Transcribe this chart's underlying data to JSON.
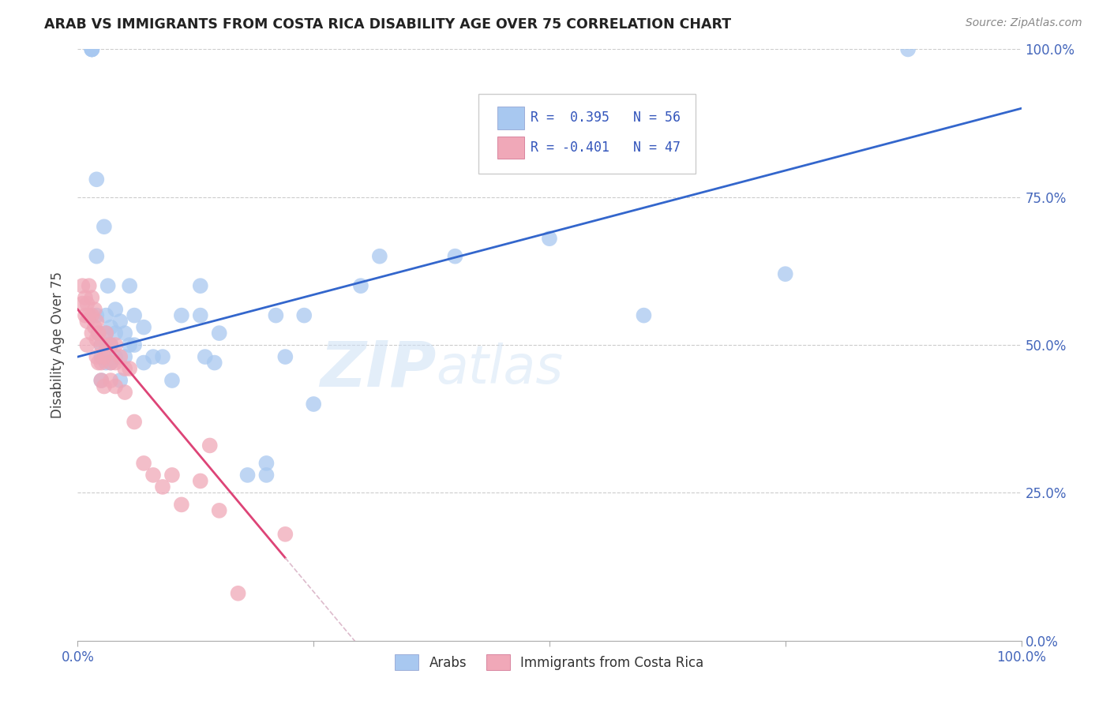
{
  "title": "ARAB VS IMMIGRANTS FROM COSTA RICA DISABILITY AGE OVER 75 CORRELATION CHART",
  "source": "Source: ZipAtlas.com",
  "ylabel": "Disability Age Over 75",
  "ytick_labels": [
    "100.0%",
    "75.0%",
    "50.0%",
    "25.0%",
    "0.0%"
  ],
  "ytick_values": [
    100,
    75,
    50,
    25,
    0
  ],
  "legend_blue_label": "Arabs",
  "legend_pink_label": "Immigrants from Costa Rica",
  "R_blue": 0.395,
  "N_blue": 56,
  "R_pink": -0.401,
  "N_pink": 47,
  "blue_color": "#A8C8F0",
  "pink_color": "#F0A8B8",
  "blue_line_color": "#3366CC",
  "pink_line_color": "#DD4477",
  "watermark_zip": "ZIP",
  "watermark_atlas": "atlas",
  "background_color": "#FFFFFF",
  "grid_color": "#CCCCCC",
  "tick_color": "#4466BB",
  "arab_x": [
    1.5,
    1.5,
    1.5,
    1.5,
    2.0,
    2.0,
    2.0,
    2.2,
    2.5,
    2.5,
    2.5,
    2.8,
    3.0,
    3.0,
    3.0,
    3.0,
    3.2,
    3.5,
    3.5,
    3.5,
    4.0,
    4.0,
    4.0,
    4.5,
    4.5,
    5.0,
    5.0,
    5.5,
    5.5,
    6.0,
    6.0,
    7.0,
    7.0,
    8.0,
    9.0,
    10.0,
    11.0,
    13.0,
    13.0,
    13.5,
    14.5,
    15.0,
    18.0,
    20.0,
    20.0,
    21.0,
    22.0,
    24.0,
    25.0,
    30.0,
    32.0,
    40.0,
    50.0,
    60.0,
    75.0,
    88.0
  ],
  "arab_y": [
    100,
    100,
    100,
    100,
    78,
    65,
    55,
    52,
    50,
    48,
    44,
    70,
    55,
    52,
    50,
    47,
    60,
    53,
    50,
    47,
    56,
    52,
    48,
    54,
    44,
    52,
    48,
    60,
    50,
    55,
    50,
    53,
    47,
    48,
    48,
    44,
    55,
    60,
    55,
    48,
    47,
    52,
    28,
    30,
    28,
    55,
    48,
    55,
    40,
    60,
    65,
    65,
    68,
    55,
    62,
    100
  ],
  "cr_x": [
    0.5,
    0.5,
    0.8,
    0.8,
    1.0,
    1.0,
    1.0,
    1.2,
    1.2,
    1.5,
    1.5,
    1.5,
    1.8,
    1.8,
    2.0,
    2.0,
    2.0,
    2.2,
    2.2,
    2.5,
    2.5,
    2.5,
    2.8,
    2.8,
    3.0,
    3.0,
    3.5,
    3.5,
    3.5,
    4.0,
    4.0,
    4.0,
    4.5,
    5.0,
    5.0,
    5.5,
    6.0,
    7.0,
    8.0,
    9.0,
    10.0,
    11.0,
    13.0,
    14.0,
    15.0,
    17.0,
    22.0
  ],
  "cr_y": [
    60,
    57,
    58,
    55,
    57,
    54,
    50,
    60,
    55,
    58,
    55,
    52,
    56,
    53,
    54,
    51,
    48,
    52,
    47,
    50,
    47,
    44,
    48,
    43,
    52,
    49,
    50,
    47,
    44,
    50,
    47,
    43,
    48,
    46,
    42,
    46,
    37,
    30,
    28,
    26,
    28,
    23,
    27,
    33,
    22,
    8,
    18
  ],
  "xlim": [
    0,
    100
  ],
  "ylim": [
    0,
    100
  ],
  "blue_line_x0": 0,
  "blue_line_y0": 48,
  "blue_line_x1": 100,
  "blue_line_y1": 90,
  "pink_line_x0": 0,
  "pink_line_y0": 56,
  "pink_line_x1": 22,
  "pink_line_y1": 14
}
